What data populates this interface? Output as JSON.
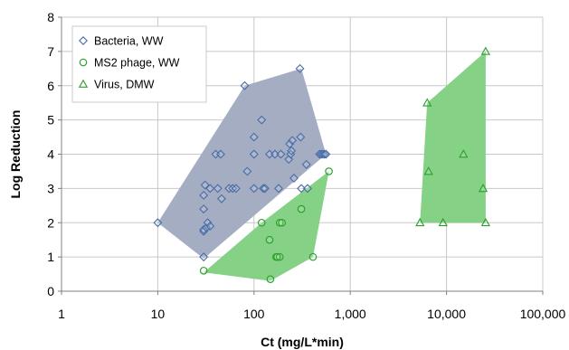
{
  "chart_data": {
    "type": "scatter",
    "xlabel": "Ct (mg/L*min)",
    "ylabel": "Log Reduction",
    "x_scale": "log",
    "xlim": [
      1,
      100000
    ],
    "ylim": [
      0,
      8
    ],
    "x_ticks": [
      {
        "value": 1,
        "label": "1"
      },
      {
        "value": 10,
        "label": "10"
      },
      {
        "value": 100,
        "label": "100"
      },
      {
        "value": 1000,
        "label": "1,000"
      },
      {
        "value": 10000,
        "label": "10,000"
      },
      {
        "value": 100000,
        "label": "100,000"
      }
    ],
    "y_ticks": [
      {
        "value": 0,
        "label": "0"
      },
      {
        "value": 1,
        "label": "1"
      },
      {
        "value": 2,
        "label": "2"
      },
      {
        "value": 3,
        "label": "3"
      },
      {
        "value": 4,
        "label": "4"
      },
      {
        "value": 5,
        "label": "5"
      },
      {
        "value": 6,
        "label": "6"
      },
      {
        "value": 7,
        "label": "7"
      },
      {
        "value": 8,
        "label": "8"
      }
    ],
    "grid": true,
    "legend_position": "top-left",
    "series": [
      {
        "name": "Bacteria, WW",
        "marker": "diamond",
        "color": "#4a6da8",
        "hull_fill": "#a4adc2",
        "points": [
          [
            10,
            2
          ],
          [
            30,
            1
          ],
          [
            30,
            1.75
          ],
          [
            30,
            1.8
          ],
          [
            30,
            2.4
          ],
          [
            30,
            2.8
          ],
          [
            31,
            3.1
          ],
          [
            32,
            1.85
          ],
          [
            33,
            2
          ],
          [
            35,
            1.9
          ],
          [
            35,
            3
          ],
          [
            40,
            4
          ],
          [
            42,
            3
          ],
          [
            45,
            4
          ],
          [
            46,
            2.7
          ],
          [
            55,
            3
          ],
          [
            60,
            3
          ],
          [
            65,
            3
          ],
          [
            80,
            6
          ],
          [
            85,
            3.5
          ],
          [
            100,
            4
          ],
          [
            100,
            4.5
          ],
          [
            100,
            3
          ],
          [
            120,
            5
          ],
          [
            125,
            3
          ],
          [
            130,
            3
          ],
          [
            145,
            4
          ],
          [
            165,
            4
          ],
          [
            180,
            3
          ],
          [
            190,
            4
          ],
          [
            230,
            3.85
          ],
          [
            235,
            4.3
          ],
          [
            240,
            4
          ],
          [
            245,
            4.1
          ],
          [
            250,
            4.4
          ],
          [
            260,
            3.3
          ],
          [
            300,
            6.5
          ],
          [
            305,
            4.5
          ],
          [
            310,
            3
          ],
          [
            350,
            3.7
          ],
          [
            360,
            3
          ],
          [
            480,
            4
          ],
          [
            500,
            4
          ],
          [
            520,
            4
          ],
          [
            540,
            4
          ],
          [
            560,
            4
          ]
        ],
        "hull": [
          [
            10,
            2
          ],
          [
            30,
            0.95
          ],
          [
            560,
            4
          ],
          [
            310,
            6.5
          ],
          [
            80,
            6
          ]
        ]
      },
      {
        "name": "MS2 phage, WW",
        "marker": "circle",
        "color": "#2ca02c",
        "hull_fill": "#85d185",
        "points": [
          [
            30,
            0.6
          ],
          [
            120,
            2
          ],
          [
            145,
            1.5
          ],
          [
            148,
            0.35
          ],
          [
            170,
            1
          ],
          [
            175,
            1
          ],
          [
            185,
            1
          ],
          [
            185,
            2
          ],
          [
            195,
            2
          ],
          [
            310,
            2.4
          ],
          [
            410,
            1
          ],
          [
            600,
            3.5
          ]
        ],
        "hull": [
          [
            30,
            0.55
          ],
          [
            148,
            0.3
          ],
          [
            410,
            1
          ],
          [
            600,
            3.5
          ],
          [
            120,
            2
          ]
        ]
      },
      {
        "name": "Virus, DMW",
        "marker": "triangle",
        "color": "#2ca02c",
        "hull_fill": "#85d185",
        "points": [
          [
            5300,
            2
          ],
          [
            6300,
            5.5
          ],
          [
            6500,
            3.5
          ],
          [
            9200,
            2
          ],
          [
            15000,
            4
          ],
          [
            24000,
            3
          ],
          [
            25500,
            2
          ],
          [
            25500,
            7
          ]
        ],
        "hull": [
          [
            5300,
            2
          ],
          [
            25500,
            2
          ],
          [
            25500,
            7
          ],
          [
            6300,
            5.5
          ]
        ]
      }
    ]
  }
}
